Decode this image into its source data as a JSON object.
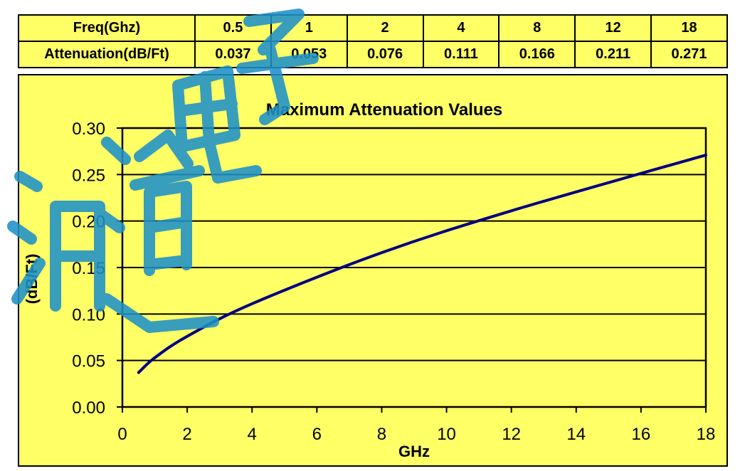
{
  "table": {
    "freq_label": "Freq(Ghz)",
    "atten_label": "Attenuation(dB/Ft)",
    "freqs": [
      "0.5",
      "1",
      "2",
      "4",
      "8",
      "12",
      "18"
    ],
    "attens": [
      "0.037",
      "0.053",
      "0.076",
      "0.111",
      "0.166",
      "0.211",
      "0.271"
    ]
  },
  "colors": {
    "background": "#ffff66",
    "line": "#000080",
    "watermark": "#1e90c8"
  },
  "watermark": {
    "text": "浦道电子",
    "kind": "watermark-lettering"
  },
  "chart_data": {
    "type": "line",
    "title": "Maximum Attenuation Values",
    "xlabel": "GHz",
    "ylabel": "(dB/Ft)",
    "xlim": [
      0,
      18
    ],
    "ylim": [
      0,
      0.3
    ],
    "x_ticks": [
      "0",
      "2",
      "4",
      "6",
      "8",
      "10",
      "12",
      "14",
      "16",
      "18"
    ],
    "y_ticks": [
      "0.00",
      "0.05",
      "0.10",
      "0.15",
      "0.20",
      "0.25",
      "0.30"
    ],
    "grid": "horizontal",
    "legend": "none",
    "x": [
      0.5,
      1,
      2,
      4,
      8,
      12,
      18
    ],
    "values": [
      0.037,
      0.053,
      0.076,
      0.111,
      0.166,
      0.211,
      0.271
    ]
  }
}
